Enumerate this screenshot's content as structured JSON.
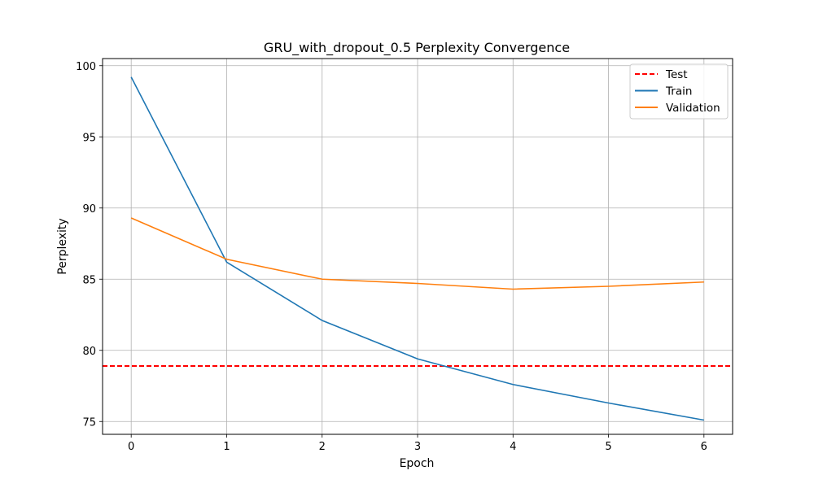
{
  "chart_data": {
    "type": "line",
    "title": "GRU_with_dropout_0.5 Perplexity Convergence",
    "xlabel": "Epoch",
    "ylabel": "Perplexity",
    "xlim": [
      -0.3,
      6.3
    ],
    "ylim": [
      74.1,
      100.5
    ],
    "x_ticks": [
      0,
      1,
      2,
      3,
      4,
      5,
      6
    ],
    "y_ticks": [
      75,
      80,
      85,
      90,
      95,
      100
    ],
    "grid": true,
    "legend_position": "top-right",
    "series": [
      {
        "name": "Test",
        "style": "dashed",
        "color": "#ff0000",
        "hline": 78.9
      },
      {
        "name": "Train",
        "style": "solid",
        "color": "#1f77b4",
        "x": [
          0,
          1,
          2,
          3,
          4,
          5,
          6
        ],
        "values": [
          99.2,
          86.2,
          82.1,
          79.4,
          77.6,
          76.3,
          75.1
        ]
      },
      {
        "name": "Validation",
        "style": "solid",
        "color": "#ff7f0e",
        "x": [
          0,
          1,
          2,
          3,
          4,
          5,
          6
        ],
        "values": [
          89.3,
          86.4,
          85.0,
          84.7,
          84.3,
          84.5,
          84.8
        ]
      }
    ]
  }
}
